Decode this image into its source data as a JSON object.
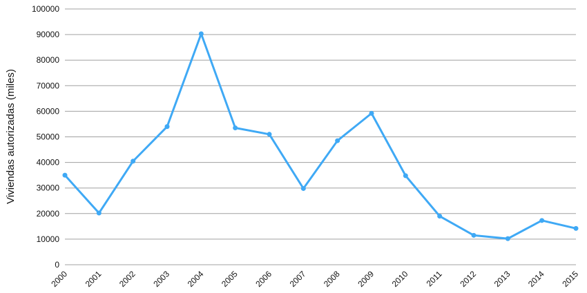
{
  "chart_data": {
    "type": "line",
    "y_label": "Viviendas autorizadas (miles)",
    "categories": [
      "2000",
      "2001",
      "2002",
      "2003",
      "2004",
      "2005",
      "2006",
      "2007",
      "2008",
      "2009",
      "2010",
      "2011",
      "2012",
      "2013",
      "2014",
      "2015"
    ],
    "series": [
      {
        "name": null,
        "color": "#3fa9f5",
        "values": [
          35000,
          20200,
          40500,
          54000,
          90300,
          53500,
          51000,
          29800,
          48500,
          59200,
          34800,
          19000,
          11500,
          10200,
          17300,
          14200
        ]
      }
    ],
    "ylim": [
      0,
      100000
    ],
    "yticks": [
      0,
      10000,
      20000,
      30000,
      40000,
      50000,
      60000,
      70000,
      80000,
      90000,
      100000
    ],
    "grid": true
  }
}
